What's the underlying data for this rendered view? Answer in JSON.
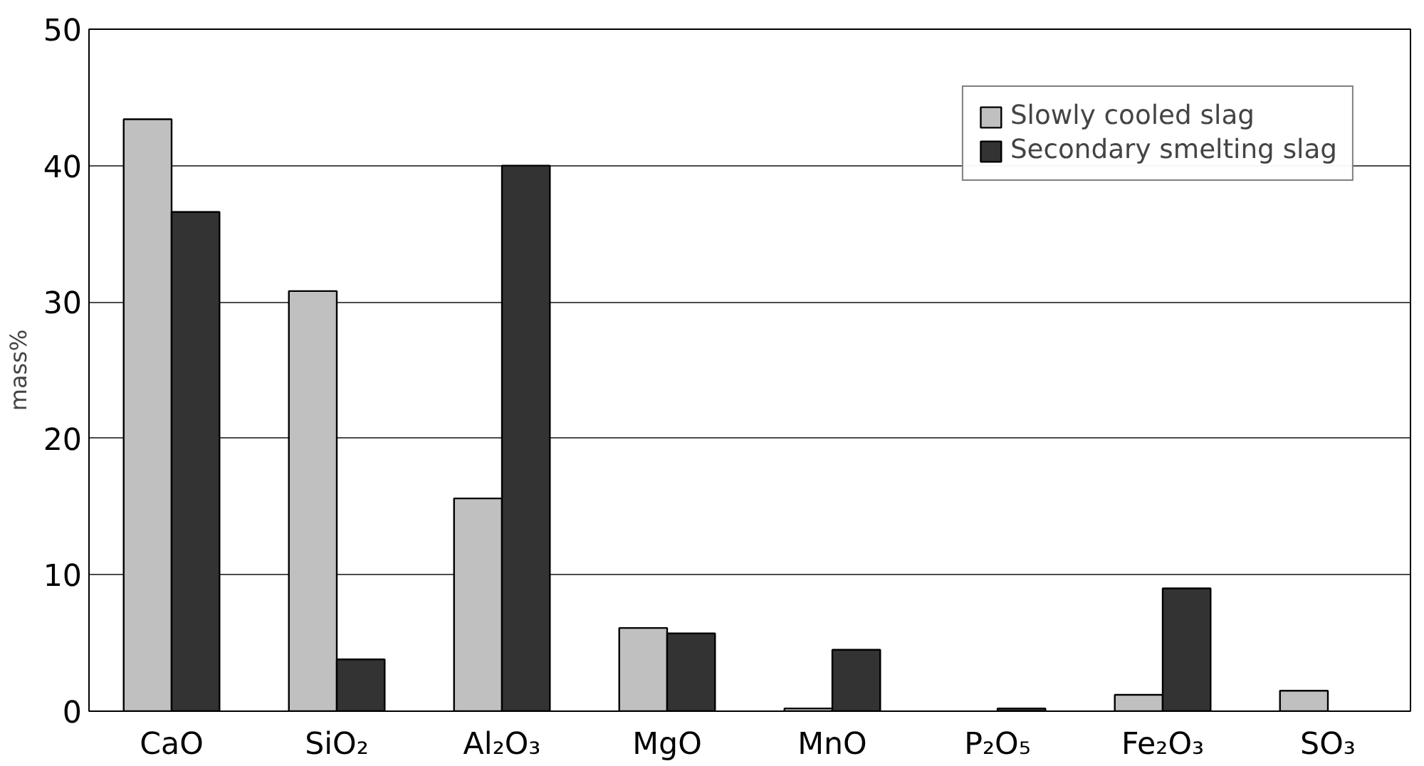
{
  "chart_data": {
    "type": "bar",
    "ylabel": "mass%",
    "categories": [
      "CaO",
      "SiO₂",
      "Al₂O₃",
      "MgO",
      "MnO",
      "P₂O₅",
      "Fe₂O₃",
      "SO₃"
    ],
    "series": [
      {
        "name": "Slowly cooled slag",
        "color": "#c0c0c0",
        "values": [
          43.4,
          30.8,
          15.6,
          6.1,
          0.2,
          null,
          1.2,
          1.5
        ]
      },
      {
        "name": "Secondary smelting slag",
        "color": "#333333",
        "values": [
          36.6,
          3.8,
          40.0,
          5.7,
          4.5,
          0.2,
          9.0,
          null
        ]
      }
    ],
    "ylim": [
      0,
      50
    ],
    "yticks": [
      0,
      10,
      20,
      30,
      40,
      50
    ],
    "grid": "y",
    "legend": "top right"
  }
}
